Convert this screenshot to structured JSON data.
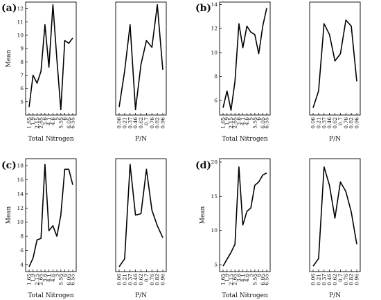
{
  "panels": [
    {
      "label": "(a)",
      "ylabel": "Mean",
      "ylim": [
        4,
        12.5
      ],
      "yticks": [
        5,
        6,
        7,
        8,
        9,
        10,
        11,
        12
      ],
      "charts": [
        {
          "type": "line",
          "xlabel": "Total Nitrogen",
          "categories": [
            "1.65",
            "1.9",
            "2.15",
            "2.65",
            "3.6",
            "4.1",
            "4.6",
            "5",
            "5.55",
            "6",
            "6.05",
            "6.55"
          ],
          "values": [
            4.6,
            7.0,
            6.4,
            7.3,
            10.8,
            7.6,
            12.3,
            8.2,
            4.4,
            9.6,
            9.4,
            9.8
          ]
        },
        {
          "type": "line",
          "xlabel": "P/N",
          "categories": [
            "0.06",
            "0.21",
            "0.37",
            "0.46",
            "0.62",
            "0.7",
            "0.76",
            "0.82",
            "0.96"
          ],
          "values": [
            4.6,
            7.3,
            10.8,
            4.4,
            7.8,
            9.6,
            9.1,
            12.3,
            7.4
          ]
        }
      ]
    },
    {
      "label": "(b)",
      "ylabel": "",
      "ylim": [
        4.8,
        14.2
      ],
      "yticks": [
        6,
        8,
        10,
        12,
        14
      ],
      "charts": [
        {
          "type": "line",
          "xlabel": "Total Nitrogen",
          "categories": [
            "1.65",
            "1.9",
            "2.15",
            "2.65",
            "3.6",
            "4.1",
            "4.6",
            "5",
            "5.55",
            "6",
            "6.05",
            "6.55"
          ],
          "values": [
            5.4,
            6.8,
            5.2,
            7.6,
            12.4,
            10.4,
            12.2,
            11.7,
            11.5,
            9.9,
            12.2,
            13.7
          ]
        },
        {
          "type": "line",
          "xlabel": "P/N",
          "categories": [
            "0.06",
            "0.21",
            "0.37",
            "0.46",
            "0.62",
            "0.7",
            "0.76",
            "0.82",
            "0.96"
          ],
          "values": [
            5.4,
            6.8,
            12.4,
            11.5,
            9.3,
            9.9,
            12.7,
            12.2,
            7.6
          ]
        }
      ]
    },
    {
      "label": "(c)",
      "ylabel": "Mean",
      "ylim": [
        3,
        19
      ],
      "yticks": [
        4,
        6,
        8,
        10,
        12,
        14,
        16,
        18
      ],
      "charts": [
        {
          "type": "line",
          "xlabel": "Total Nitrogen",
          "categories": [
            "1.65",
            "1.9",
            "2.15",
            "2.65",
            "3.6",
            "4.1",
            "4.6",
            "5",
            "5.55",
            "6",
            "6.05",
            "6.55"
          ],
          "values": [
            3.7,
            4.9,
            7.5,
            7.7,
            18.2,
            8.8,
            9.5,
            8.0,
            11.0,
            17.5,
            17.5,
            15.3
          ]
        },
        {
          "type": "line",
          "xlabel": "P/N",
          "categories": [
            "0.06",
            "0.21",
            "0.37",
            "0.46",
            "0.62",
            "0.7",
            "0.76",
            "0.82",
            "0.96"
          ],
          "values": [
            3.7,
            4.8,
            18.2,
            11.0,
            11.2,
            17.5,
            11.7,
            9.5,
            7.8
          ]
        }
      ]
    },
    {
      "label": "(d)",
      "ylabel": "Mean",
      "ylim": [
        4,
        20.5
      ],
      "yticks": [
        5,
        10,
        15,
        20
      ],
      "charts": [
        {
          "type": "line",
          "xlabel": "Total Nitrogen",
          "categories": [
            "1.65",
            "1.9",
            "2.15",
            "2.65",
            "3.6",
            "4.1",
            "4.6",
            "5",
            "5.55",
            "6",
            "6.05",
            "6.55"
          ],
          "values": [
            4.8,
            5.8,
            6.8,
            8.0,
            19.3,
            10.8,
            12.8,
            13.3,
            16.6,
            17.1,
            18.1,
            18.4
          ],
          "xticks": [
            "1.65",
            "1.9",
            "2.15",
            "2.65",
            "3.6",
            "4.1",
            "4.6",
            "5",
            "5.55",
            "6",
            "6.05",
            "6.55"
          ]
        },
        {
          "type": "line",
          "xlabel": "P/N",
          "categories": [
            "0.06",
            "0.21",
            "0.37",
            "0.46",
            "0.62",
            "0.7",
            "0.76",
            "0.82",
            "0.96"
          ],
          "values": [
            4.8,
            5.9,
            19.3,
            16.6,
            11.8,
            17.1,
            15.7,
            12.7,
            8.0
          ]
        }
      ]
    }
  ],
  "chart_data": [
    {
      "type": "line",
      "panel": "(a)",
      "xlabel": "Total Nitrogen",
      "ylabel": "Mean",
      "categories": [
        "1.65",
        "1.9",
        "2.15",
        "2.65",
        "3.6",
        "4.1",
        "4.6",
        "5",
        "5.55",
        "6",
        "6.05",
        "6.55"
      ],
      "values": [
        4.6,
        7.0,
        6.4,
        7.3,
        10.8,
        7.6,
        12.3,
        8.2,
        4.4,
        9.6,
        9.4,
        9.8
      ]
    },
    {
      "type": "line",
      "panel": "(a)",
      "xlabel": "P/N",
      "categories": [
        "0.06",
        "0.21",
        "0.37",
        "0.46",
        "0.62",
        "0.7",
        "0.76",
        "0.82",
        "0.96"
      ],
      "values": [
        4.6,
        7.3,
        10.8,
        4.4,
        7.8,
        9.6,
        9.1,
        12.3,
        7.4
      ]
    },
    {
      "type": "line",
      "panel": "(b)",
      "xlabel": "Total Nitrogen",
      "categories": [
        "1.65",
        "1.9",
        "2.15",
        "2.65",
        "3.6",
        "4.1",
        "4.6",
        "5",
        "5.55",
        "6",
        "6.05",
        "6.55"
      ],
      "values": [
        5.4,
        6.8,
        5.2,
        7.6,
        12.4,
        10.4,
        12.2,
        11.7,
        11.5,
        9.9,
        12.2,
        13.7
      ]
    },
    {
      "type": "line",
      "panel": "(b)",
      "xlabel": "P/N",
      "categories": [
        "0.06",
        "0.21",
        "0.37",
        "0.46",
        "0.62",
        "0.7",
        "0.76",
        "0.82",
        "0.96"
      ],
      "values": [
        5.4,
        6.8,
        12.4,
        11.5,
        9.3,
        9.9,
        12.7,
        12.2,
        7.6
      ]
    },
    {
      "type": "line",
      "panel": "(c)",
      "xlabel": "Total Nitrogen",
      "ylabel": "Mean",
      "categories": [
        "1.65",
        "1.9",
        "2.15",
        "2.65",
        "3.6",
        "4.1",
        "4.6",
        "5",
        "5.55",
        "6",
        "6.05",
        "6.55"
      ],
      "values": [
        3.7,
        4.9,
        7.5,
        7.7,
        18.2,
        8.8,
        9.5,
        8.0,
        11.0,
        17.5,
        17.5,
        15.3
      ]
    },
    {
      "type": "line",
      "panel": "(c)",
      "xlabel": "P/N",
      "categories": [
        "0.06",
        "0.21",
        "0.37",
        "0.46",
        "0.62",
        "0.7",
        "0.76",
        "0.82",
        "0.96"
      ],
      "values": [
        3.7,
        4.8,
        18.2,
        11.0,
        11.2,
        17.5,
        11.7,
        9.5,
        7.8
      ]
    },
    {
      "type": "line",
      "panel": "(d)",
      "xlabel": "Total Nitrogen",
      "ylabel": "Mean",
      "categories": [
        "1.65",
        "1.9",
        "2.15",
        "2.65",
        "3.6",
        "4.1",
        "4.6",
        "5",
        "5.55",
        "6",
        "6.05",
        "6.55"
      ],
      "values": [
        4.8,
        5.8,
        6.8,
        8.0,
        19.3,
        10.8,
        12.8,
        13.3,
        16.6,
        17.1,
        18.1,
        18.4
      ]
    },
    {
      "type": "line",
      "panel": "(d)",
      "xlabel": "P/N",
      "categories": [
        "0.06",
        "0.21",
        "0.37",
        "0.46",
        "0.62",
        "0.7",
        "0.76",
        "0.82",
        "0.96"
      ],
      "values": [
        4.8,
        5.9,
        19.3,
        16.6,
        11.8,
        17.1,
        15.7,
        12.7,
        8.0
      ]
    }
  ]
}
